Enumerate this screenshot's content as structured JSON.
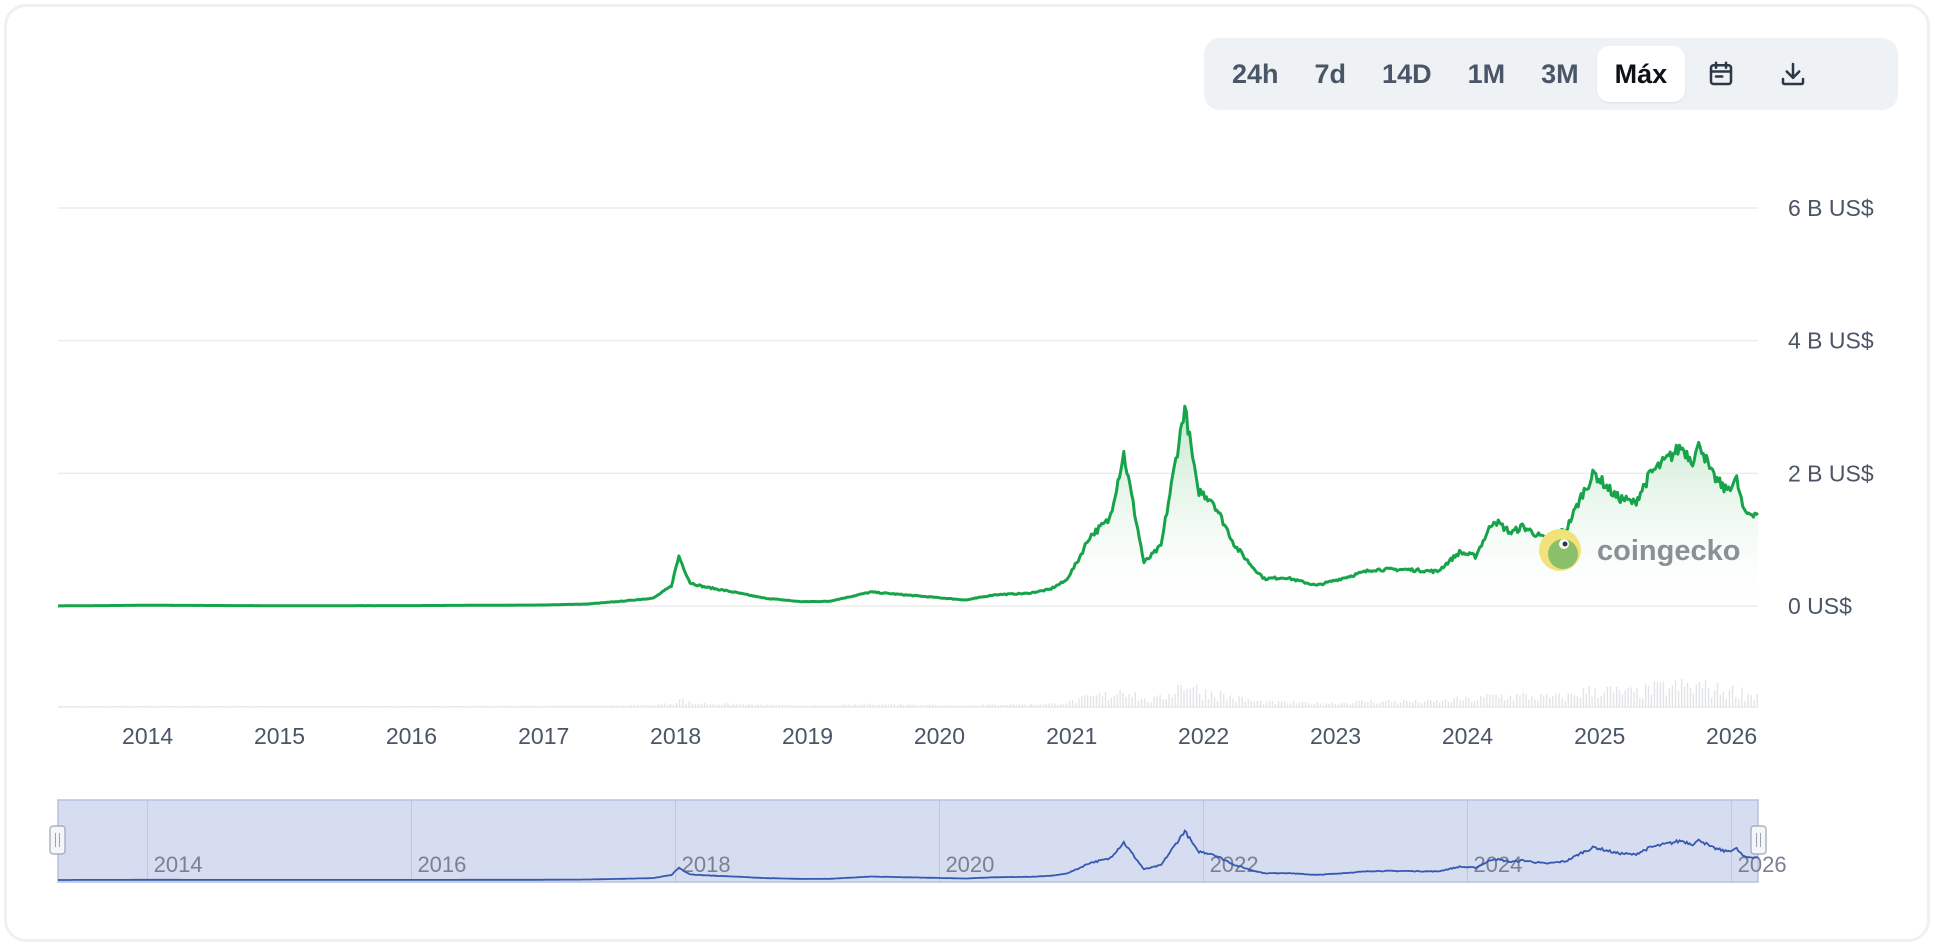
{
  "toolbar": {
    "ranges": [
      {
        "label": "24h",
        "active": false
      },
      {
        "label": "7d",
        "active": false
      },
      {
        "label": "14D",
        "active": false
      },
      {
        "label": "1M",
        "active": false
      },
      {
        "label": "3M",
        "active": false
      },
      {
        "label": "Máx",
        "active": true
      }
    ],
    "calendar_icon": "calendar-icon",
    "download_icon": "download-icon"
  },
  "watermark": {
    "text": "coingecko",
    "icon": "coingecko-logo-icon"
  },
  "colors": {
    "line": "#16a34a",
    "area_top": "#bfe6c8",
    "volume": "#e2e4e8",
    "navigator_fill": "#d7ddf0",
    "navigator_line": "#3558b0",
    "grid": "#e6e8eb"
  },
  "chart_data": {
    "type": "area",
    "xlabel": "",
    "ylabel": "",
    "xlim": [
      "2013-04-28",
      "2026-03-15"
    ],
    "ylim": [
      0,
      6
    ],
    "y_unit": "B US$",
    "y_ticks": [
      {
        "value": 0,
        "label": "0 US$"
      },
      {
        "value": 2,
        "label": "2 B US$"
      },
      {
        "value": 4,
        "label": "4 B US$"
      },
      {
        "value": 6,
        "label": "6 B US$"
      }
    ],
    "x_ticks": [
      "2014",
      "2015",
      "2016",
      "2017",
      "2018",
      "2019",
      "2020",
      "2021",
      "2022",
      "2023",
      "2024",
      "2025",
      "2026"
    ],
    "grid": true,
    "legend": "none",
    "series": [
      {
        "x": [
          "2013-04-28",
          "2014-01-01",
          "2015-01-01",
          "2016-01-01",
          "2017-01-01",
          "2017-05-01",
          "2017-08-01",
          "2017-11-01",
          "2017-12-20",
          "2018-01-10",
          "2018-02-10",
          "2018-03-20",
          "2018-06-01",
          "2018-09-01",
          "2018-12-15",
          "2019-03-01",
          "2019-06-25",
          "2019-09-01",
          "2019-12-20",
          "2020-03-15",
          "2020-06-01",
          "2020-09-01",
          "2020-11-01",
          "2020-12-15",
          "2021-01-15",
          "2021-02-20",
          "2021-04-15",
          "2021-05-25",
          "2021-07-20",
          "2021-09-05",
          "2021-11-10",
          "2021-12-15",
          "2022-01-25",
          "2022-03-30",
          "2022-05-15",
          "2022-06-18",
          "2022-08-15",
          "2022-11-10",
          "2023-01-15",
          "2023-04-15",
          "2023-07-15",
          "2023-10-10",
          "2023-12-10",
          "2024-01-23",
          "2024-03-14",
          "2024-05-01",
          "2024-06-01",
          "2024-08-05",
          "2024-09-30",
          "2024-11-15",
          "2024-12-17",
          "2025-02-15",
          "2025-04-08",
          "2025-05-22",
          "2025-07-15",
          "2025-08-14",
          "2025-09-15",
          "2025-10-06",
          "2025-11-05",
          "2025-12-15",
          "2026-01-15",
          "2026-02-05",
          "2026-03-15"
        ],
        "values": [
          0.0015,
          0.011,
          0.004,
          0.006,
          0.015,
          0.03,
          0.07,
          0.12,
          0.3,
          0.75,
          0.35,
          0.29,
          0.22,
          0.12,
          0.065,
          0.07,
          0.21,
          0.18,
          0.13,
          0.09,
          0.17,
          0.19,
          0.25,
          0.38,
          0.65,
          1.05,
          1.3,
          2.3,
          0.65,
          0.9,
          3.0,
          1.75,
          1.6,
          0.9,
          0.6,
          0.41,
          0.43,
          0.31,
          0.41,
          0.55,
          0.55,
          0.52,
          0.81,
          0.75,
          1.3,
          1.1,
          1.2,
          1.0,
          1.15,
          1.7,
          2.0,
          1.65,
          1.55,
          2.0,
          2.25,
          2.4,
          2.2,
          2.45,
          2.0,
          1.75,
          1.9,
          1.4,
          1.4
        ]
      }
    ]
  }
}
